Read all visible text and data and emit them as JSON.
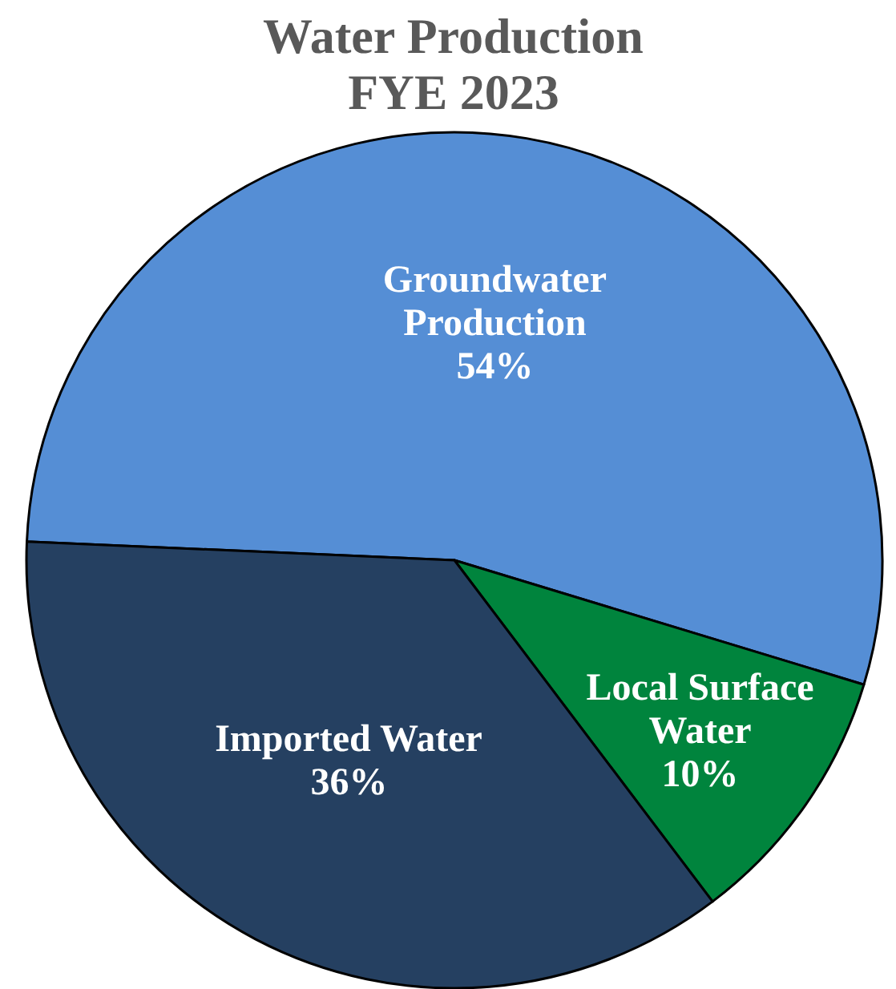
{
  "chart_data": {
    "type": "pie",
    "title": "Water Production FYE 2023",
    "categories": [
      "Groundwater Production",
      "Local Surface Water",
      "Imported Water"
    ],
    "values": [
      54,
      10,
      36
    ],
    "colors": [
      "#558ed5",
      "#00843d",
      "#254061"
    ],
    "value_labels": [
      "54%",
      "10%",
      "36%"
    ]
  }
}
